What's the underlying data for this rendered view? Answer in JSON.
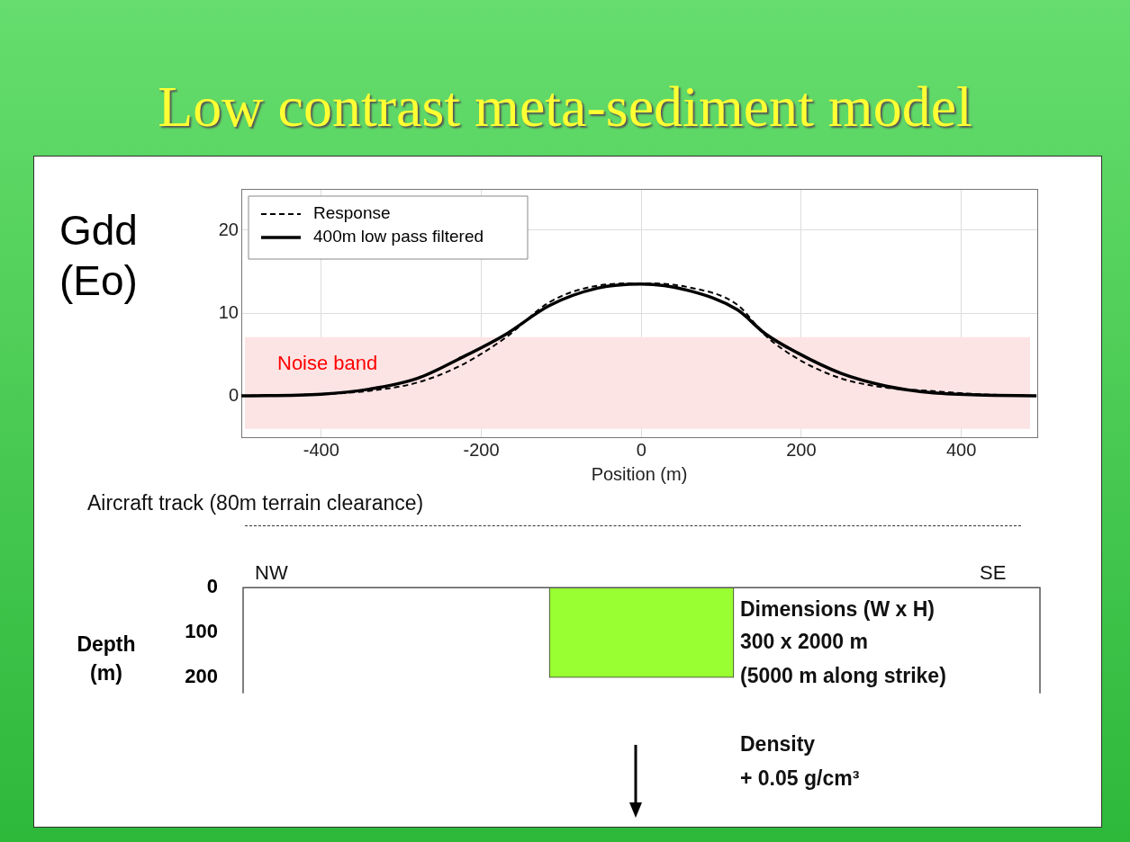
{
  "chart_data": [
    {
      "type": "line",
      "title": "Low contrast meta-sediment model",
      "ylabel": "Gdd\n(Eo)",
      "xlabel": "Position (m)",
      "xlim": [
        -500,
        495
      ],
      "ylim": [
        -5,
        25
      ],
      "xticks": [
        -400,
        -200,
        0,
        200,
        400
      ],
      "yticks": [
        0,
        10,
        20
      ],
      "grid": true,
      "legend": "top left",
      "bands": [
        {
          "axis": "y",
          "from": -4,
          "to": 7.1,
          "label": "Noise band",
          "color": "#fde4e4"
        }
      ],
      "series": [
        {
          "name": "Response",
          "color": "#000000",
          "line_style": "dashed",
          "x": [
            -500,
            -400,
            -340,
            -280,
            -225,
            -170,
            -115,
            -55,
            0,
            60,
            120,
            155,
            195,
            250,
            305,
            360,
            420,
            494
          ],
          "values": [
            0,
            0.2,
            0.6,
            1.6,
            3.7,
            7.0,
            11.3,
            13.3,
            13.6,
            13.1,
            11.0,
            7.3,
            4.5,
            2.1,
            1.0,
            0.6,
            0.2,
            0
          ]
        },
        {
          "name": "400m low pass filtered",
          "color": "#000000",
          "line_style": "solid",
          "x": [
            -500,
            -400,
            -340,
            -280,
            -225,
            -170,
            -115,
            -55,
            0,
            60,
            120,
            155,
            195,
            250,
            305,
            360,
            420,
            494
          ],
          "values": [
            0,
            0.2,
            0.8,
            2.1,
            4.6,
            7.4,
            10.9,
            13.0,
            13.5,
            12.7,
            10.4,
            7.5,
            5.2,
            2.7,
            1.2,
            0.4,
            0.1,
            0
          ]
        }
      ]
    },
    {
      "type": "bar",
      "ylabel": "Depth\n(m)",
      "categories": [
        null
      ],
      "values": [
        200
      ],
      "base": [
        0
      ],
      "color": "#99ff33",
      "ylim": [
        235,
        0
      ],
      "yticks": [
        0,
        100,
        200
      ],
      "tick_labels": "y",
      "annotations": [
        "Aircraft track (80m terrain clearance)",
        "NW",
        "SE",
        "Dimensions (W x H)",
        "300 x 2000 m",
        "(5000 m along strike)",
        "Density",
        "+ 0.05 g/cm³"
      ]
    }
  ]
}
